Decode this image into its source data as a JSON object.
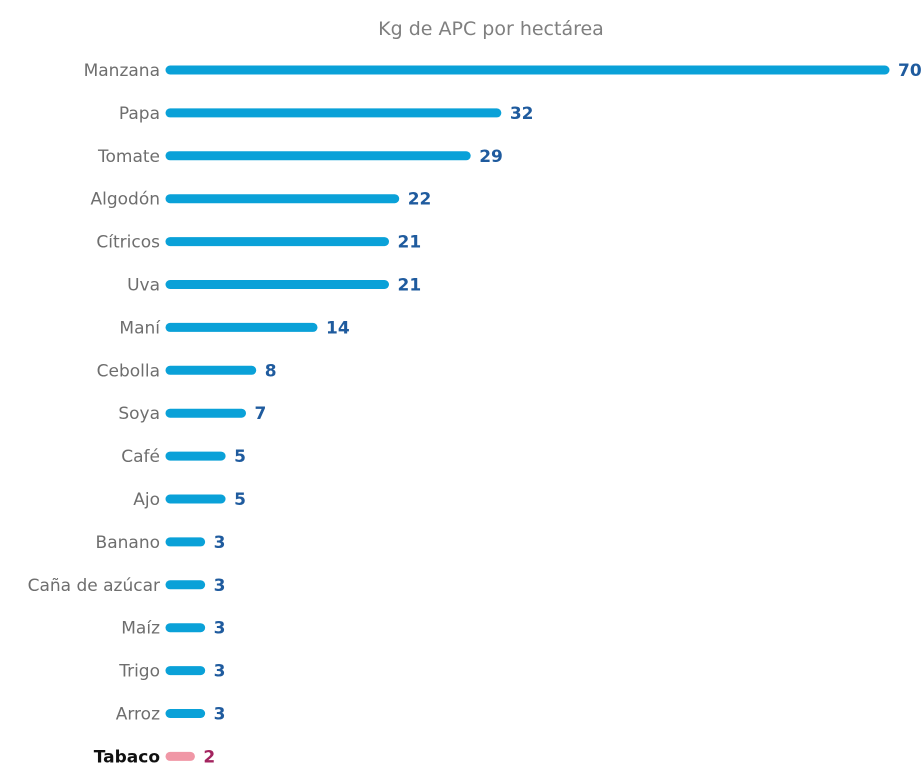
{
  "chart_data": {
    "type": "bar",
    "orientation": "horizontal",
    "title": "Kg de APC por hectárea",
    "categories": [
      "Manzana",
      "Papa",
      "Tomate",
      "Algodón",
      "Cítricos",
      "Uva",
      "Maní",
      "Cebolla",
      "Soya",
      "Café",
      "Ajo",
      "Banano",
      "Caña de azúcar",
      "Maíz",
      "Trigo",
      "Arroz",
      "Tabaco"
    ],
    "values": [
      70,
      32,
      29,
      22,
      21,
      21,
      14,
      8,
      7,
      5,
      5,
      3,
      3,
      3,
      3,
      3,
      2
    ],
    "highlight": "Tabaco",
    "xlim": [
      0,
      70
    ],
    "grid": false,
    "legend": "none",
    "colors": {
      "bar": "#0aa1d8",
      "value_label": "#1f5b9e",
      "highlight_bar": "#f097a6",
      "highlight_label": "#a3245f",
      "highlight_category": "#111111"
    }
  }
}
